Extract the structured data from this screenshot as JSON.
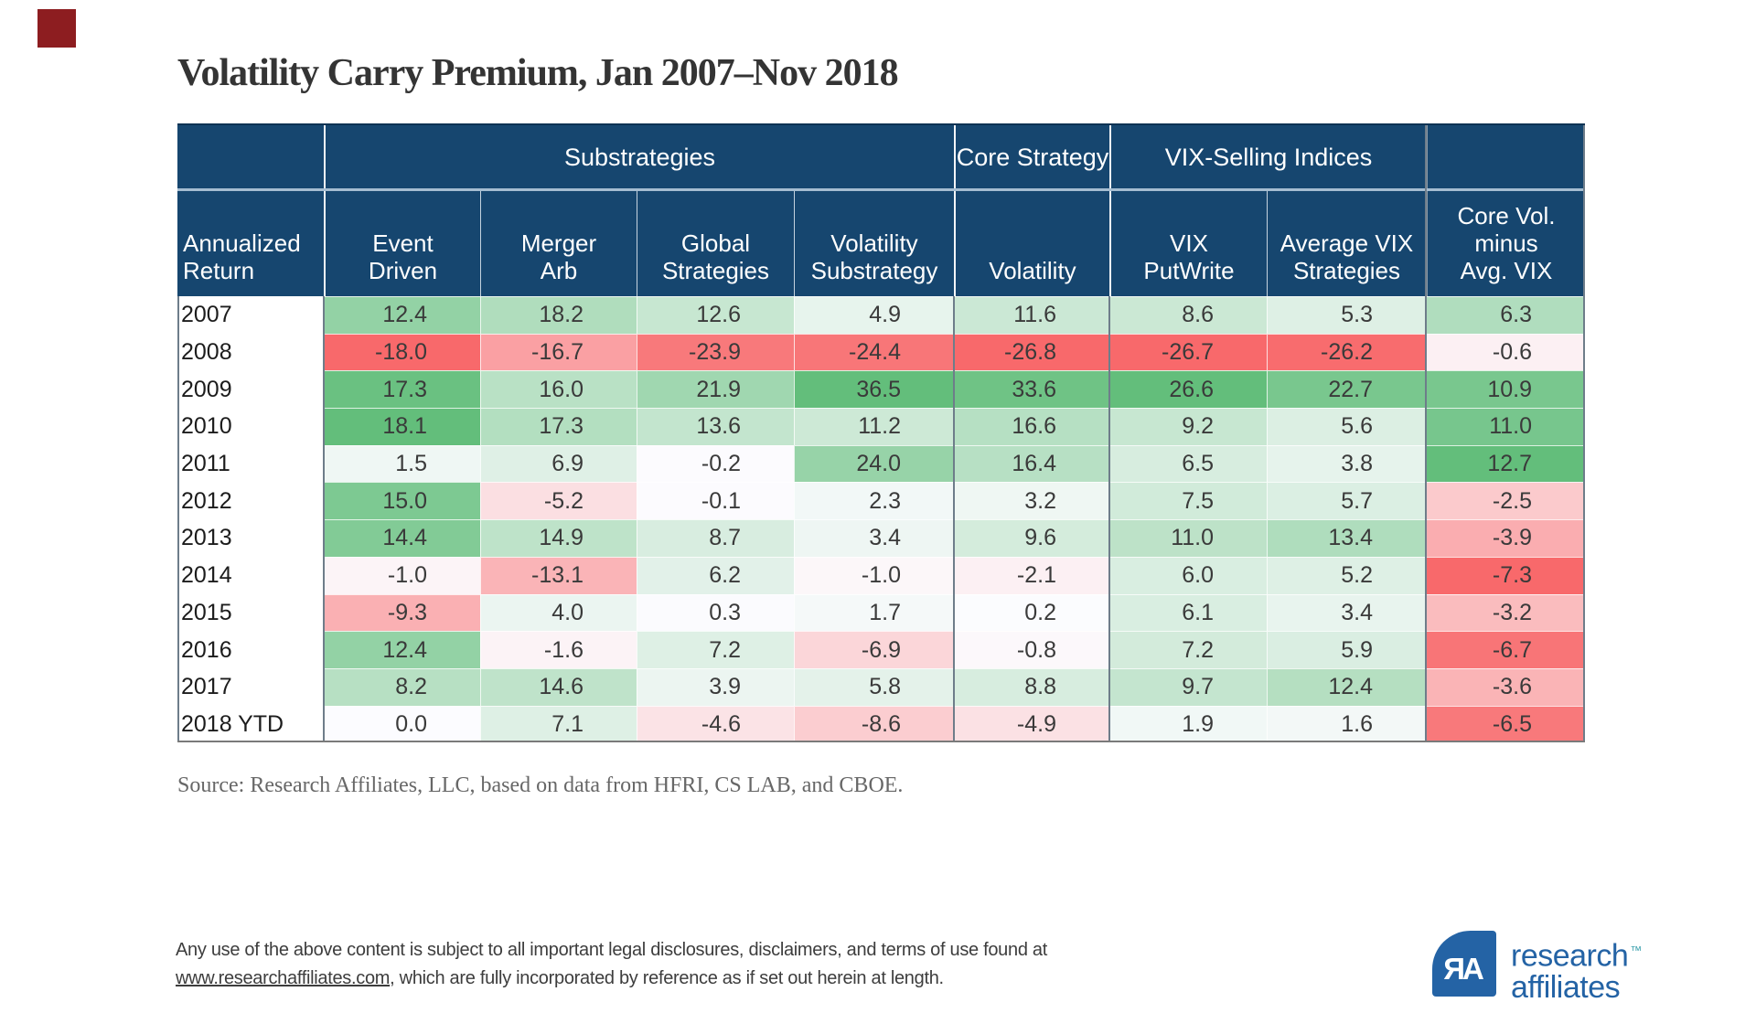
{
  "page": {
    "marker_color": "#8D1D20",
    "header_navy": "#16466F",
    "logo_blue": "#2463A5"
  },
  "title": "Volatility Carry Premium, Jan 2007–Nov 2018",
  "chart_data": {
    "type": "heatmap",
    "title": "Volatility Carry Premium, Jan 2007–Nov 2018",
    "row_header": "Annualized\nReturn",
    "column_groups": [
      {
        "label": "Substrategies",
        "columns": [
          0,
          1,
          2,
          3
        ]
      },
      {
        "label": "Core Strategy",
        "columns": [
          4
        ]
      },
      {
        "label": "VIX-Selling Indices",
        "columns": [
          5,
          6
        ]
      },
      {
        "label": "",
        "columns": [
          7
        ]
      }
    ],
    "columns": [
      "Event\nDriven",
      "Merger\nArb",
      "Global\nStrategies",
      "Volatility\nSubstrategy",
      "Volatility",
      "VIX\nPutWrite",
      "Average VIX\nStrategies",
      "Core Vol.\nminus\nAvg. VIX"
    ],
    "years": [
      "2007",
      "2008",
      "2009",
      "2010",
      "2011",
      "2012",
      "2013",
      "2014",
      "2015",
      "2016",
      "2017",
      "2018 YTD"
    ],
    "rows": [
      [
        12.4,
        18.2,
        12.6,
        4.9,
        11.6,
        8.6,
        5.3,
        6.3
      ],
      [
        -18.0,
        -16.7,
        -23.9,
        -24.4,
        -26.8,
        -26.7,
        -26.2,
        -0.6
      ],
      [
        17.3,
        16.0,
        21.9,
        36.5,
        33.6,
        26.6,
        22.7,
        10.9
      ],
      [
        18.1,
        17.3,
        13.6,
        11.2,
        16.6,
        9.2,
        5.6,
        11.0
      ],
      [
        1.5,
        6.9,
        -0.2,
        24.0,
        16.4,
        6.5,
        3.8,
        12.7
      ],
      [
        15.0,
        -5.2,
        -0.1,
        2.3,
        3.2,
        7.5,
        5.7,
        -2.5
      ],
      [
        14.4,
        14.9,
        8.7,
        3.4,
        9.6,
        11.0,
        13.4,
        -3.9
      ],
      [
        -1.0,
        -13.1,
        6.2,
        -1.0,
        -2.1,
        6.0,
        5.2,
        -7.3
      ],
      [
        -9.3,
        4.0,
        0.3,
        1.7,
        0.2,
        6.1,
        3.4,
        -3.2
      ],
      [
        12.4,
        -1.6,
        7.2,
        -6.9,
        -0.8,
        7.2,
        5.9,
        -6.7
      ],
      [
        8.2,
        14.6,
        3.9,
        5.8,
        8.8,
        9.7,
        12.4,
        -3.6
      ],
      [
        0.0,
        7.1,
        -4.6,
        -8.6,
        -4.9,
        1.9,
        1.6,
        -6.5
      ]
    ],
    "color_scale": {
      "negative_end": "#F8696B",
      "midpoint": "#FCFCFF",
      "positive_end": "#63BE7B",
      "ranges": [
        {
          "cols": [
            0
          ],
          "min": -18.0,
          "max": 18.1
        },
        {
          "cols": [
            1,
            2,
            3,
            4
          ],
          "min": -26.8,
          "max": 36.5
        },
        {
          "cols": [
            5,
            6
          ],
          "min": -26.7,
          "max": 26.6
        },
        {
          "cols": [
            7
          ],
          "min": -7.3,
          "max": 12.7
        }
      ]
    },
    "legend_position": "none",
    "grid": "off"
  },
  "source": "Source: Research Affiliates, LLC, based on data from HFRI, CS LAB, and CBOE.",
  "footer": {
    "text_before_link": "Any use of the above content is subject to all important legal disclosures, disclaimers, and terms of use found at",
    "link": "www.researchaffiliates.com",
    "text_after_link": ", which are fully incorporated by reference as if set out herein at length."
  },
  "logo": {
    "monogram": "ЯA",
    "line1": "research",
    "trademark": "™",
    "line2": "affiliates"
  }
}
